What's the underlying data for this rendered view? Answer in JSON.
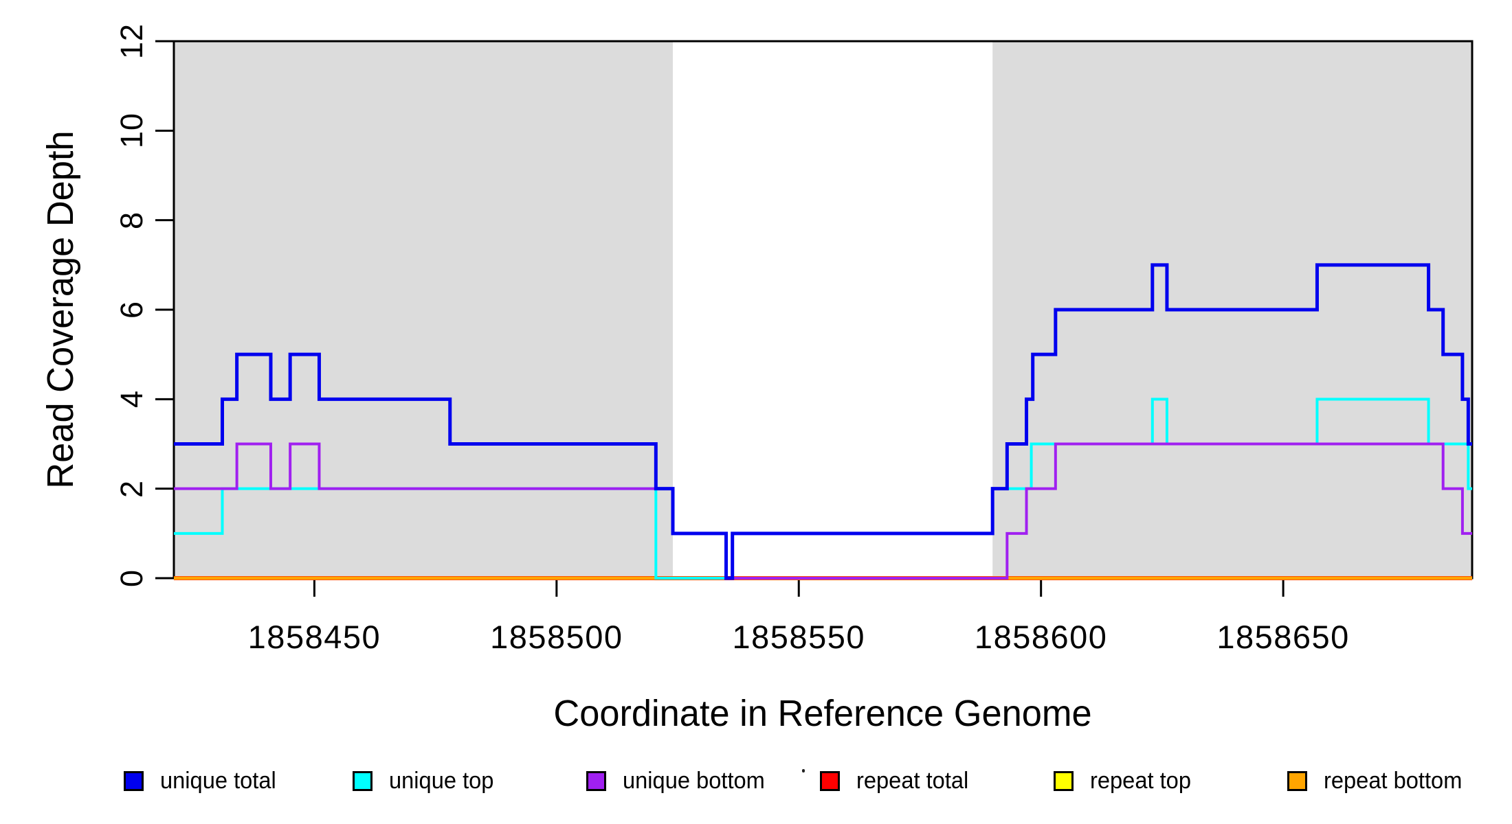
{
  "y_axis": {
    "title": "Read Coverage Depth",
    "tick_values": [
      0,
      2,
      4,
      6,
      8,
      10,
      12
    ],
    "tick_labels": [
      "0",
      "2",
      "4",
      "6",
      "8",
      "10",
      "12"
    ]
  },
  "x_axis": {
    "title": "Coordinate in Reference Genome",
    "tick_values": [
      1858450,
      1858500,
      1858550,
      1858600,
      1858650
    ],
    "tick_labels": [
      "1858450",
      "1858500",
      "1858550",
      "1858600",
      "1858650"
    ]
  },
  "legend": {
    "items": [
      {
        "label": "unique total",
        "color": "#0000ee"
      },
      {
        "label": "unique top",
        "color": "#00ffff"
      },
      {
        "label": "unique bottom",
        "color": "#a020f0"
      },
      {
        "label": "repeat total",
        "color": "#ff0000"
      },
      {
        "label": "repeat top",
        "color": "#ffff00"
      },
      {
        "label": "repeat bottom",
        "color": "#ffa500"
      }
    ]
  },
  "colors": {
    "shaded_region": "#dcdcdc",
    "axis": "#000000",
    "background": "#ffffff"
  },
  "chart_data": {
    "type": "line",
    "line_style": "step",
    "title": "",
    "xlabel": "Coordinate in Reference Genome",
    "ylabel": "Read Coverage Depth",
    "xlim": [
      1858421,
      1858689
    ],
    "ylim": [
      0,
      12
    ],
    "grid": false,
    "legend_position": "bottom",
    "shaded_regions": [
      {
        "x_start": 1858421,
        "x_end": 1858524,
        "color": "#dcdcdc"
      },
      {
        "x_start": 1858590,
        "x_end": 1858689,
        "color": "#dcdcdc"
      }
    ],
    "series_note": "step_points are [x, depth] pairs; depth holds from x until next pair; series listed in draw order (bottom to top)",
    "series": [
      {
        "name": "repeat top",
        "color": "#ffff00",
        "line_width": 5,
        "step_points": [
          [
            1858421,
            0
          ]
        ]
      },
      {
        "name": "repeat total",
        "color": "#ff0000",
        "line_width": 6,
        "step_points": [
          [
            1858421,
            0
          ]
        ]
      },
      {
        "name": "repeat bottom",
        "color": "#ffa500",
        "line_width": 5,
        "step_points": [
          [
            1858421,
            0
          ]
        ]
      },
      {
        "name": "unique top",
        "color": "#00ffff",
        "line_width": 4,
        "step_points": [
          [
            1858421,
            1
          ],
          [
            1858431,
            2
          ],
          [
            1858520.5,
            0
          ],
          [
            1858536.3,
            1
          ],
          [
            1858590,
            2
          ],
          [
            1858598,
            3
          ],
          [
            1858623,
            4
          ],
          [
            1858626,
            3
          ],
          [
            1858657,
            4
          ],
          [
            1858680,
            3
          ],
          [
            1858688.2,
            2
          ]
        ]
      },
      {
        "name": "unique bottom",
        "color": "#a020f0",
        "line_width": 4,
        "step_points": [
          [
            1858421,
            2
          ],
          [
            1858434,
            3
          ],
          [
            1858441,
            2
          ],
          [
            1858445,
            3
          ],
          [
            1858451,
            2
          ],
          [
            1858524,
            1
          ],
          [
            1858535,
            0
          ],
          [
            1858593,
            1
          ],
          [
            1858597,
            2
          ],
          [
            1858603,
            3
          ],
          [
            1858683,
            2
          ],
          [
            1858687,
            1
          ]
        ]
      },
      {
        "name": "unique total",
        "color": "#0000ee",
        "line_width": 5,
        "step_points": [
          [
            1858421,
            3
          ],
          [
            1858431,
            4
          ],
          [
            1858434,
            5
          ],
          [
            1858441,
            4
          ],
          [
            1858445,
            5
          ],
          [
            1858451,
            4
          ],
          [
            1858478,
            3
          ],
          [
            1858520.5,
            2
          ],
          [
            1858524,
            1
          ],
          [
            1858535,
            0
          ],
          [
            1858536.3,
            1
          ],
          [
            1858590,
            2
          ],
          [
            1858593,
            3
          ],
          [
            1858597,
            4
          ],
          [
            1858598.3,
            5
          ],
          [
            1858603,
            6
          ],
          [
            1858623,
            7
          ],
          [
            1858626,
            6
          ],
          [
            1858657,
            7
          ],
          [
            1858680,
            6
          ],
          [
            1858683,
            5
          ],
          [
            1858687,
            4
          ],
          [
            1858688.2,
            3
          ]
        ]
      }
    ]
  }
}
